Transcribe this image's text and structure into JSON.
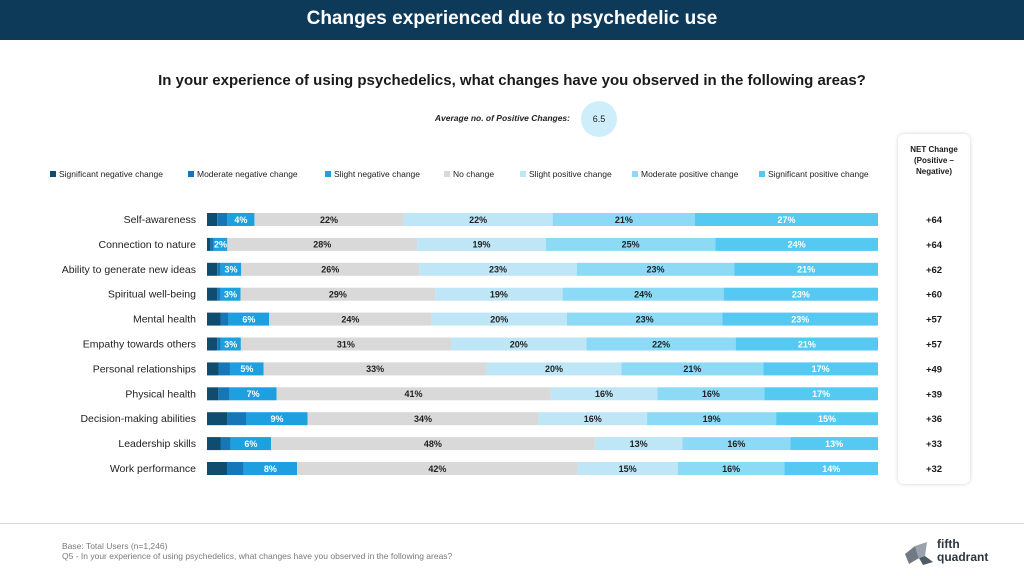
{
  "header": {
    "title": "Changes experienced due to psychedelic use"
  },
  "question": "In your experience of using psychedelics, what changes have you observed in the following areas?",
  "average": {
    "label": "Average no. of Positive Changes:",
    "value": "6.5"
  },
  "net_header": "NET Change\n(Positive –\nNegative)",
  "footnotes": {
    "base": "Base: Total Users (n=1,246)",
    "question": "Q5 - In your experience of using psychedelics, what changes have you observed in the following areas?"
  },
  "logo": {
    "line1": "fifth",
    "line2": "quadrant"
  },
  "colors": {
    "significant_negative": "#0f4c6e",
    "moderate_negative": "#1577b8",
    "slight_negative": "#1d9fe0",
    "no_change": "#d9d9d9",
    "slight_positive": "#bfe6f6",
    "moderate_positive": "#8cdaf6",
    "significant_positive": "#55c9f2",
    "header": "#0e3a5a"
  },
  "chart_data": {
    "type": "bar",
    "orientation": "horizontal",
    "stacked": "100%",
    "legend_position": "top",
    "categories": [
      "Self-awareness",
      "Connection to nature",
      "Ability to generate new ideas",
      "Spiritual well-being",
      "Mental health",
      "Empathy towards others",
      "Personal relationships",
      "Physical health",
      "Decision-making abilities",
      "Leadership skills",
      "Work performance"
    ],
    "series": [
      {
        "name": "Significant negative change",
        "values": [
          1.5,
          0.5,
          1.5,
          1.5,
          2,
          1.5,
          1.7,
          1.7,
          3,
          2,
          3
        ]
      },
      {
        "name": "Moderate negative change",
        "values": [
          1.5,
          0.5,
          0.5,
          0.5,
          1.2,
          0.5,
          1.7,
          1.7,
          2.8,
          1.5,
          2.5
        ]
      },
      {
        "name": "Slight negative change",
        "values": [
          4,
          2,
          3,
          3,
          6,
          3,
          5,
          7,
          9,
          6,
          8
        ]
      },
      {
        "name": "No change",
        "values": [
          22,
          28,
          26,
          29,
          24,
          31,
          33,
          41,
          34,
          48,
          42
        ]
      },
      {
        "name": "Slight positive change",
        "values": [
          22,
          19,
          23,
          19,
          20,
          20,
          20,
          16,
          16,
          13,
          15
        ]
      },
      {
        "name": "Moderate positive change",
        "values": [
          21,
          25,
          23,
          24,
          23,
          22,
          21,
          16,
          19,
          16,
          16
        ]
      },
      {
        "name": "Significant positive change",
        "values": [
          27,
          24,
          21,
          23,
          23,
          21,
          17,
          17,
          15,
          13,
          14
        ]
      }
    ],
    "labeled_series": [
      2,
      3,
      4,
      5,
      6
    ],
    "net_change": [
      "+64",
      "+64",
      "+62",
      "+60",
      "+57",
      "+57",
      "+49",
      "+39",
      "+36",
      "+33",
      "+32"
    ]
  }
}
